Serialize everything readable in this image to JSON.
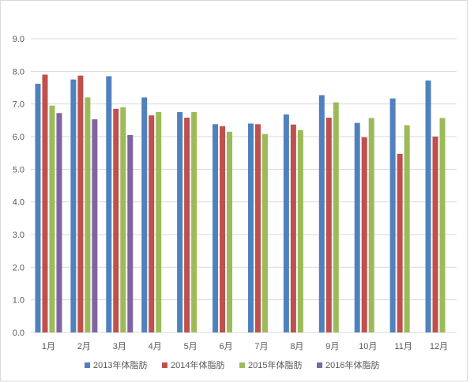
{
  "chart_data": {
    "type": "bar",
    "categories": [
      "1月",
      "2月",
      "3月",
      "4月",
      "5月",
      "6月",
      "7月",
      "8月",
      "9月",
      "10月",
      "11月",
      "12月"
    ],
    "ylim": [
      0,
      9
    ],
    "yticks": [
      "0.0",
      "1.0",
      "2.0",
      "3.0",
      "4.0",
      "5.0",
      "6.0",
      "7.0",
      "8.0",
      "9.0"
    ],
    "grid": true,
    "legend_position": "bottom",
    "series": [
      {
        "name": "2013年体脂肪",
        "color": "#4f81bd",
        "values": [
          7.62,
          7.75,
          7.85,
          7.2,
          6.75,
          6.38,
          6.4,
          6.68,
          7.27,
          6.42,
          7.17,
          7.72
        ]
      },
      {
        "name": "2014年体脂肪",
        "color": "#c0504d",
        "values": [
          7.9,
          7.87,
          6.85,
          6.65,
          6.58,
          6.32,
          6.38,
          6.37,
          6.58,
          5.98,
          5.47,
          6.0
        ]
      },
      {
        "name": "2015年体脂肪",
        "color": "#9bbb59",
        "values": [
          6.95,
          7.2,
          6.9,
          6.75,
          6.75,
          6.15,
          6.08,
          6.2,
          7.05,
          6.57,
          6.35,
          6.57
        ]
      },
      {
        "name": "2016年体脂肪",
        "color": "#8064a2",
        "values": [
          6.72,
          6.53,
          6.05,
          null,
          null,
          null,
          null,
          null,
          null,
          null,
          null,
          null
        ]
      }
    ]
  }
}
